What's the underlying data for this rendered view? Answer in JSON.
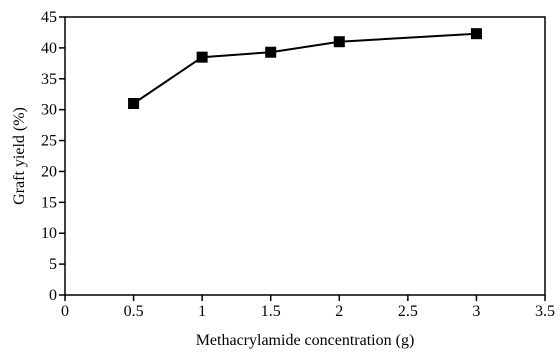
{
  "chart_data": {
    "type": "line",
    "x": [
      0.5,
      1,
      1.5,
      2,
      3
    ],
    "series": [
      {
        "values": [
          31,
          38.5,
          39.3,
          41,
          42.3
        ],
        "color": "#000000",
        "marker": "square"
      }
    ],
    "xlabel": "Methacrylamide concentration (g)",
    "ylabel": "Graft yield (%)",
    "xlim": [
      0,
      3.5
    ],
    "ylim": [
      0,
      45
    ],
    "xticks": [
      0,
      0.5,
      1,
      1.5,
      2,
      2.5,
      3,
      3.5
    ],
    "xtick_labels": [
      "0",
      "0.5",
      "1",
      "1.5",
      "2",
      "2.5",
      "3",
      "3.5"
    ],
    "yticks": [
      0,
      5,
      10,
      15,
      20,
      25,
      30,
      35,
      40,
      45
    ],
    "ytick_labels": [
      "0",
      "5",
      "10",
      "15",
      "20",
      "25",
      "30",
      "35",
      "40",
      "45"
    ],
    "grid": false
  }
}
